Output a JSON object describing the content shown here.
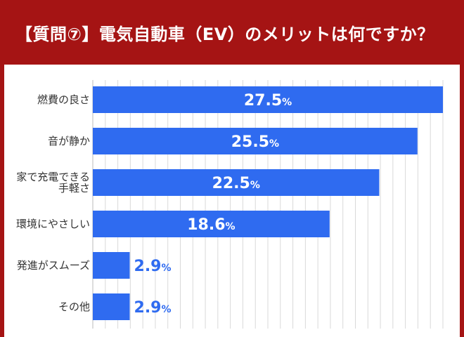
{
  "header": {
    "title": "【質問⑦】電気自動車（EV）のメリットは何ですか？"
  },
  "colors": {
    "header_bg": "#a51414",
    "bar": "#2f6bf0",
    "label_inside": "#ffffff",
    "label_outside": "#2f6bf0",
    "grid": "#d9d9d9"
  },
  "chart_data": {
    "type": "bar",
    "orientation": "horizontal",
    "title": "【質問⑦】電気自動車（EV）のメリットは何ですか？",
    "categories": [
      [
        "燃費の良さ"
      ],
      [
        "音が静か"
      ],
      [
        "家で充電できる",
        "手軽さ"
      ],
      [
        "環境にやさしい"
      ],
      [
        "発進がスムーズ"
      ],
      [
        "その他"
      ]
    ],
    "values": [
      27.5,
      25.5,
      22.5,
      18.6,
      2.9,
      2.9
    ],
    "value_labels": [
      "27.5",
      "25.5",
      "22.5",
      "18.6",
      "2.9",
      "2.9"
    ],
    "unit": "%",
    "xlim": [
      0,
      27.5
    ],
    "grid": true,
    "legend": "none"
  }
}
